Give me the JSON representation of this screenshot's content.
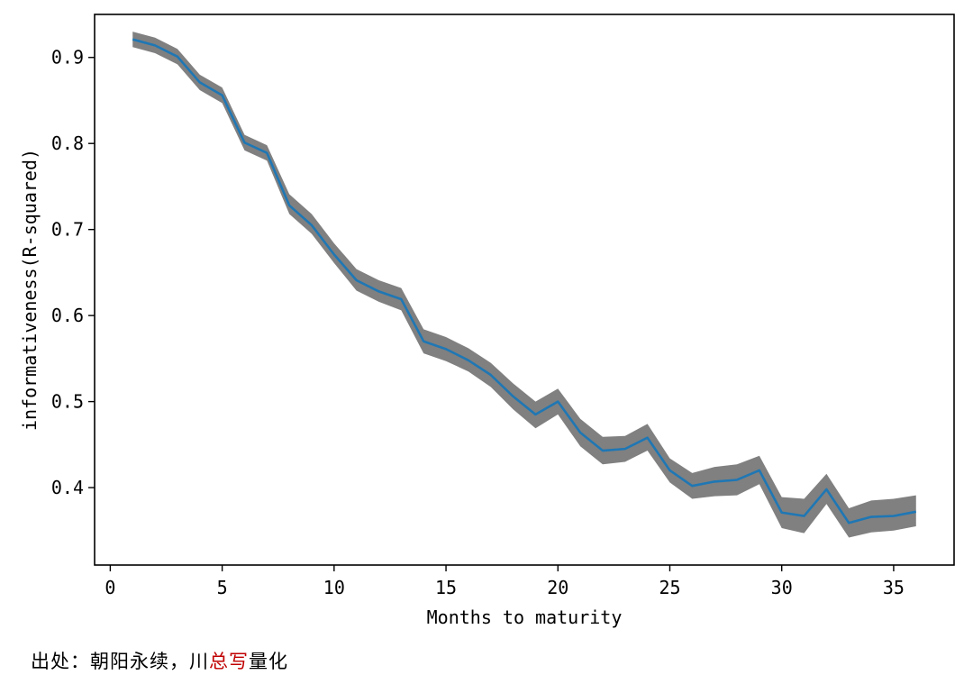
{
  "chart_data": {
    "type": "line",
    "title": "",
    "xlabel": "Months to maturity",
    "ylabel": "informativeness(R-squared)",
    "xlim": [
      -0.7,
      37.7
    ],
    "ylim": [
      0.31,
      0.95
    ],
    "xticks": [
      0,
      5,
      10,
      15,
      20,
      25,
      30,
      35
    ],
    "yticks": [
      0.4,
      0.5,
      0.6,
      0.7,
      0.8,
      0.9
    ],
    "xtick_labels": [
      "0",
      "5",
      "10",
      "15",
      "20",
      "25",
      "30",
      "35"
    ],
    "ytick_labels": [
      "0.4",
      "0.5",
      "0.6",
      "0.7",
      "0.8",
      "0.9"
    ],
    "grid": false,
    "line_color": "#1f77b4",
    "band_color": "#808080",
    "series": [
      {
        "x": [
          1,
          2,
          3,
          4,
          5,
          6,
          7,
          8,
          9,
          10,
          11,
          12,
          13,
          14,
          15,
          16,
          17,
          18,
          19,
          20,
          21,
          22,
          23,
          24,
          25,
          26,
          27,
          28,
          29,
          30,
          31,
          32,
          33,
          34,
          35,
          36
        ],
        "values": [
          0.921,
          0.914,
          0.901,
          0.871,
          0.856,
          0.801,
          0.789,
          0.728,
          0.705,
          0.671,
          0.641,
          0.628,
          0.619,
          0.57,
          0.561,
          0.548,
          0.531,
          0.506,
          0.485,
          0.5,
          0.464,
          0.443,
          0.445,
          0.458,
          0.42,
          0.402,
          0.407,
          0.409,
          0.42,
          0.371,
          0.367,
          0.398,
          0.359,
          0.366,
          0.367,
          0.372
        ],
        "lower": [
          0.912,
          0.905,
          0.892,
          0.862,
          0.847,
          0.792,
          0.78,
          0.718,
          0.695,
          0.661,
          0.629,
          0.616,
          0.606,
          0.556,
          0.547,
          0.535,
          0.517,
          0.491,
          0.469,
          0.485,
          0.448,
          0.427,
          0.43,
          0.443,
          0.406,
          0.387,
          0.39,
          0.391,
          0.404,
          0.353,
          0.347,
          0.381,
          0.342,
          0.348,
          0.35,
          0.355
        ],
        "upper": [
          0.93,
          0.923,
          0.91,
          0.88,
          0.865,
          0.81,
          0.798,
          0.741,
          0.718,
          0.684,
          0.654,
          0.641,
          0.632,
          0.584,
          0.575,
          0.562,
          0.545,
          0.521,
          0.5,
          0.515,
          0.48,
          0.459,
          0.46,
          0.474,
          0.434,
          0.417,
          0.424,
          0.427,
          0.437,
          0.389,
          0.387,
          0.416,
          0.376,
          0.385,
          0.387,
          0.391
        ]
      }
    ]
  },
  "caption": {
    "prefix": "出处：朝阳永续，川",
    "highlight": "总写",
    "suffix": "量化"
  },
  "colors": {
    "highlight": "#c00000",
    "axis": "#000000"
  }
}
